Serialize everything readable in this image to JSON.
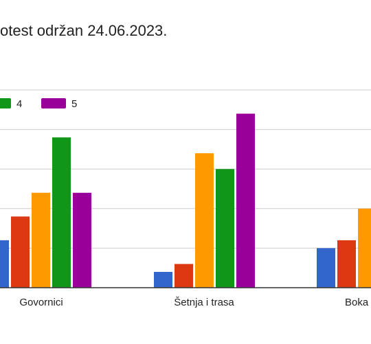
{
  "chart_data": {
    "type": "bar",
    "title": "otest održan 24.06.2023.",
    "categories": [
      "Govornici",
      "Šetnja i trasa",
      "Boka"
    ],
    "series": [
      {
        "name": "",
        "color": "#3366cc",
        "values": [
          1.2,
          0.4,
          1.0
        ]
      },
      {
        "name": "",
        "color": "#dc3912",
        "values": [
          1.8,
          0.6,
          1.2
        ]
      },
      {
        "name": "",
        "color": "#ff9900",
        "values": [
          2.4,
          3.4,
          2.0
        ]
      },
      {
        "name": "4",
        "color": "#109618",
        "values": [
          3.8,
          3.0,
          null
        ]
      },
      {
        "name": "5",
        "color": "#990099",
        "values": [
          2.4,
          4.4,
          null
        ]
      }
    ],
    "ylim": [
      0,
      5
    ],
    "grid": true,
    "legend": "top-left"
  }
}
